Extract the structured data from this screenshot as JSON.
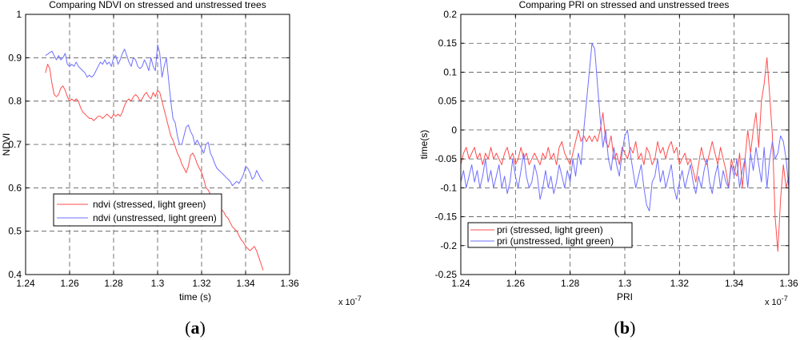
{
  "chart_data": [
    {
      "type": "line",
      "title": "Comparing NDVI on stressed and unstressed trees",
      "xlabel": "time (s)",
      "ylabel": "NDVI",
      "x_multiplier": "x 10",
      "x_multiplier_exp": "-7",
      "xlim": [
        1.24,
        1.36
      ],
      "ylim": [
        0.4,
        1.0
      ],
      "xticks": [
        1.24,
        1.26,
        1.28,
        1.3,
        1.32,
        1.34,
        1.36
      ],
      "xtick_labels": [
        "1.24",
        "1.26",
        "1.28",
        "1.3",
        "1.32",
        "1.34",
        "1.36"
      ],
      "yticks": [
        0.4,
        0.5,
        0.6,
        0.7,
        0.8,
        0.9,
        1.0
      ],
      "ytick_labels": [
        "0.4",
        "0.5",
        "0.6",
        "0.7",
        "0.8",
        "0.9",
        "1"
      ],
      "grid": true,
      "legend_position": "lower-left",
      "caption": "a",
      "series": [
        {
          "name": "ndvi (stressed, light green)",
          "color": "#ff4d4d",
          "x": [
            1.249,
            1.25,
            1.251,
            1.252,
            1.253,
            1.254,
            1.255,
            1.256,
            1.257,
            1.258,
            1.259,
            1.26,
            1.261,
            1.262,
            1.263,
            1.264,
            1.265,
            1.266,
            1.267,
            1.268,
            1.269,
            1.27,
            1.271,
            1.272,
            1.273,
            1.274,
            1.275,
            1.276,
            1.277,
            1.278,
            1.279,
            1.28,
            1.281,
            1.282,
            1.283,
            1.284,
            1.285,
            1.286,
            1.287,
            1.288,
            1.289,
            1.29,
            1.291,
            1.292,
            1.293,
            1.294,
            1.295,
            1.296,
            1.297,
            1.298,
            1.299,
            1.3,
            1.301,
            1.302,
            1.303,
            1.304,
            1.305,
            1.306,
            1.307,
            1.308,
            1.309,
            1.31,
            1.311,
            1.312,
            1.313,
            1.314,
            1.315,
            1.316,
            1.317,
            1.318,
            1.319,
            1.32,
            1.321,
            1.322,
            1.323,
            1.324,
            1.325,
            1.326,
            1.327,
            1.328,
            1.329,
            1.33,
            1.331,
            1.332,
            1.333,
            1.334,
            1.335,
            1.336,
            1.337,
            1.338,
            1.339,
            1.34,
            1.341,
            1.342,
            1.343,
            1.344,
            1.345,
            1.346,
            1.347,
            1.348
          ],
          "y": [
            0.865,
            0.885,
            0.875,
            0.84,
            0.815,
            0.81,
            0.815,
            0.83,
            0.835,
            0.825,
            0.81,
            0.8,
            0.805,
            0.8,
            0.805,
            0.8,
            0.785,
            0.775,
            0.77,
            0.765,
            0.76,
            0.76,
            0.755,
            0.76,
            0.765,
            0.765,
            0.76,
            0.765,
            0.77,
            0.765,
            0.76,
            0.77,
            0.765,
            0.77,
            0.765,
            0.775,
            0.79,
            0.8,
            0.805,
            0.8,
            0.81,
            0.815,
            0.81,
            0.8,
            0.805,
            0.815,
            0.82,
            0.81,
            0.805,
            0.82,
            0.81,
            0.825,
            0.82,
            0.8,
            0.78,
            0.76,
            0.74,
            0.72,
            0.71,
            0.695,
            0.68,
            0.67,
            0.655,
            0.645,
            0.635,
            0.65,
            0.675,
            0.68,
            0.67,
            0.655,
            0.645,
            0.635,
            0.62,
            0.6,
            0.595,
            0.585,
            0.58,
            0.57,
            0.56,
            0.555,
            0.55,
            0.545,
            0.535,
            0.53,
            0.52,
            0.51,
            0.505,
            0.5,
            0.49,
            0.48,
            0.475,
            0.465,
            0.46,
            0.455,
            0.46,
            0.465,
            0.455,
            0.44,
            0.425,
            0.41
          ]
        },
        {
          "name": "ndvi (unstressed, light green)",
          "color": "#6f6fff",
          "x": [
            1.249,
            1.25,
            1.251,
            1.252,
            1.253,
            1.254,
            1.255,
            1.256,
            1.257,
            1.258,
            1.259,
            1.26,
            1.261,
            1.262,
            1.263,
            1.264,
            1.265,
            1.266,
            1.267,
            1.268,
            1.269,
            1.27,
            1.271,
            1.272,
            1.273,
            1.274,
            1.275,
            1.276,
            1.277,
            1.278,
            1.279,
            1.28,
            1.281,
            1.282,
            1.283,
            1.284,
            1.285,
            1.286,
            1.287,
            1.288,
            1.289,
            1.29,
            1.291,
            1.292,
            1.293,
            1.294,
            1.295,
            1.296,
            1.297,
            1.298,
            1.299,
            1.3,
            1.301,
            1.302,
            1.303,
            1.304,
            1.305,
            1.306,
            1.307,
            1.308,
            1.309,
            1.31,
            1.311,
            1.312,
            1.313,
            1.314,
            1.315,
            1.316,
            1.317,
            1.318,
            1.319,
            1.32,
            1.321,
            1.322,
            1.323,
            1.324,
            1.325,
            1.326,
            1.327,
            1.328,
            1.329,
            1.33,
            1.331,
            1.332,
            1.333,
            1.334,
            1.335,
            1.336,
            1.337,
            1.338,
            1.339,
            1.34,
            1.341,
            1.342,
            1.343,
            1.344,
            1.345,
            1.346,
            1.347,
            1.348
          ],
          "y": [
            0.905,
            0.908,
            0.912,
            0.915,
            0.905,
            0.895,
            0.905,
            0.895,
            0.9,
            0.91,
            0.885,
            0.88,
            0.885,
            0.88,
            0.89,
            0.88,
            0.875,
            0.87,
            0.865,
            0.855,
            0.86,
            0.855,
            0.86,
            0.87,
            0.88,
            0.89,
            0.885,
            0.895,
            0.885,
            0.89,
            0.88,
            0.9,
            0.905,
            0.885,
            0.895,
            0.91,
            0.92,
            0.905,
            0.89,
            0.88,
            0.9,
            0.895,
            0.88,
            0.875,
            0.88,
            0.895,
            0.885,
            0.87,
            0.9,
            0.88,
            0.87,
            0.93,
            0.91,
            0.855,
            0.88,
            0.9,
            0.85,
            0.8,
            0.76,
            0.75,
            0.72,
            0.7,
            0.7,
            0.72,
            0.74,
            0.745,
            0.73,
            0.72,
            0.7,
            0.71,
            0.7,
            0.69,
            0.68,
            0.7,
            0.705,
            0.68,
            0.67,
            0.655,
            0.645,
            0.64,
            0.635,
            0.63,
            0.625,
            0.62,
            0.615,
            0.605,
            0.61,
            0.615,
            0.61,
            0.62,
            0.63,
            0.65,
            0.645,
            0.635,
            0.62,
            0.625,
            0.64,
            0.63,
            0.62,
            0.615
          ]
        }
      ]
    },
    {
      "type": "line",
      "title": "Comparing PRI on stressed and unstressed trees",
      "xlabel": "PRI",
      "ylabel": "time(s)",
      "x_multiplier": "x 10",
      "x_multiplier_exp": "-7",
      "xlim": [
        1.24,
        1.36
      ],
      "ylim": [
        -0.25,
        0.2
      ],
      "xticks": [
        1.24,
        1.26,
        1.28,
        1.3,
        1.32,
        1.34,
        1.36
      ],
      "xtick_labels": [
        "1.24",
        "1.26",
        "1.28",
        "1.3",
        "1.32",
        "1.34",
        "1.36"
      ],
      "yticks": [
        -0.25,
        -0.2,
        -0.15,
        -0.1,
        -0.05,
        0,
        0.05,
        0.1,
        0.15,
        0.2
      ],
      "ytick_labels": [
        "-0.25",
        "-0.2",
        "-0.15",
        "-0.1",
        "-0.05",
        "0",
        "0.05",
        "0.1",
        "0.15",
        "0.2"
      ],
      "grid": true,
      "legend_position": "lower-left",
      "caption": "b",
      "series": [
        {
          "name": "pri (stressed, light green)",
          "color": "#ff4d4d",
          "x": [
            1.24,
            1.241,
            1.242,
            1.243,
            1.244,
            1.245,
            1.246,
            1.247,
            1.248,
            1.249,
            1.25,
            1.251,
            1.252,
            1.253,
            1.254,
            1.255,
            1.256,
            1.257,
            1.258,
            1.259,
            1.26,
            1.261,
            1.262,
            1.263,
            1.264,
            1.265,
            1.266,
            1.267,
            1.268,
            1.269,
            1.27,
            1.271,
            1.272,
            1.273,
            1.274,
            1.275,
            1.276,
            1.277,
            1.278,
            1.279,
            1.28,
            1.281,
            1.282,
            1.283,
            1.284,
            1.285,
            1.286,
            1.287,
            1.288,
            1.289,
            1.29,
            1.291,
            1.292,
            1.293,
            1.294,
            1.295,
            1.296,
            1.297,
            1.298,
            1.299,
            1.3,
            1.301,
            1.302,
            1.303,
            1.304,
            1.305,
            1.306,
            1.307,
            1.308,
            1.309,
            1.31,
            1.311,
            1.312,
            1.313,
            1.314,
            1.315,
            1.316,
            1.317,
            1.318,
            1.319,
            1.32,
            1.321,
            1.322,
            1.323,
            1.324,
            1.325,
            1.326,
            1.327,
            1.328,
            1.329,
            1.33,
            1.331,
            1.332,
            1.333,
            1.334,
            1.335,
            1.336,
            1.337,
            1.338,
            1.339,
            1.34,
            1.341,
            1.342,
            1.343,
            1.344,
            1.345,
            1.346,
            1.347,
            1.348,
            1.349,
            1.35,
            1.351,
            1.352,
            1.353,
            1.354,
            1.355,
            1.356,
            1.357,
            1.358,
            1.359,
            1.36
          ],
          "y": [
            -0.06,
            -0.04,
            -0.03,
            -0.05,
            -0.04,
            -0.03,
            -0.05,
            -0.04,
            -0.06,
            -0.04,
            -0.05,
            -0.03,
            -0.05,
            -0.04,
            -0.05,
            -0.06,
            -0.04,
            -0.03,
            -0.05,
            -0.04,
            -0.06,
            -0.05,
            -0.03,
            -0.05,
            -0.04,
            -0.06,
            -0.05,
            -0.04,
            -0.05,
            -0.06,
            -0.04,
            -0.05,
            -0.03,
            -0.05,
            -0.04,
            -0.06,
            -0.03,
            -0.02,
            -0.04,
            -0.05,
            -0.06,
            -0.04,
            -0.02,
            0.0,
            -0.02,
            -0.01,
            -0.02,
            -0.01,
            -0.02,
            -0.01,
            -0.02,
            0.0,
            0.03,
            -0.02,
            -0.03,
            -0.01,
            -0.05,
            -0.04,
            -0.06,
            -0.03,
            -0.04,
            -0.05,
            -0.03,
            -0.04,
            -0.02,
            -0.05,
            -0.04,
            -0.06,
            -0.03,
            -0.04,
            -0.06,
            -0.05,
            -0.02,
            -0.04,
            -0.03,
            -0.05,
            -0.03,
            -0.02,
            -0.04,
            -0.03,
            -0.06,
            -0.05,
            -0.04,
            -0.06,
            -0.05,
            -0.07,
            -0.09,
            -0.06,
            -0.03,
            -0.05,
            -0.06,
            -0.04,
            -0.02,
            -0.04,
            -0.06,
            -0.03,
            -0.05,
            -0.07,
            -0.1,
            -0.05,
            -0.07,
            -0.08,
            -0.04,
            -0.1,
            -0.05,
            0.0,
            -0.04,
            0.0,
            0.03,
            -0.03,
            0.05,
            0.08,
            0.125,
            0.06,
            -0.01,
            -0.15,
            -0.21,
            -0.12,
            -0.06,
            -0.1,
            -0.08
          ]
        },
        {
          "name": "pri (unstressed, light green)",
          "color": "#6f6fff",
          "x": [
            1.24,
            1.241,
            1.242,
            1.243,
            1.244,
            1.245,
            1.246,
            1.247,
            1.248,
            1.249,
            1.25,
            1.251,
            1.252,
            1.253,
            1.254,
            1.255,
            1.256,
            1.257,
            1.258,
            1.259,
            1.26,
            1.261,
            1.262,
            1.263,
            1.264,
            1.265,
            1.266,
            1.267,
            1.268,
            1.269,
            1.27,
            1.271,
            1.272,
            1.273,
            1.274,
            1.275,
            1.276,
            1.277,
            1.278,
            1.279,
            1.28,
            1.281,
            1.282,
            1.283,
            1.284,
            1.285,
            1.286,
            1.287,
            1.288,
            1.289,
            1.29,
            1.291,
            1.292,
            1.293,
            1.294,
            1.295,
            1.296,
            1.297,
            1.298,
            1.299,
            1.3,
            1.301,
            1.302,
            1.303,
            1.304,
            1.305,
            1.306,
            1.307,
            1.308,
            1.309,
            1.31,
            1.311,
            1.312,
            1.313,
            1.314,
            1.315,
            1.316,
            1.317,
            1.318,
            1.319,
            1.32,
            1.321,
            1.322,
            1.323,
            1.324,
            1.325,
            1.326,
            1.327,
            1.328,
            1.329,
            1.33,
            1.331,
            1.332,
            1.333,
            1.334,
            1.335,
            1.336,
            1.337,
            1.338,
            1.339,
            1.34,
            1.341,
            1.342,
            1.343,
            1.344,
            1.345,
            1.346,
            1.347,
            1.348,
            1.349,
            1.35,
            1.351,
            1.352,
            1.353,
            1.354,
            1.355,
            1.356,
            1.357,
            1.358,
            1.359,
            1.36
          ],
          "y": [
            -0.09,
            -0.07,
            -0.1,
            -0.08,
            -0.06,
            -0.09,
            -0.07,
            -0.1,
            -0.08,
            -0.05,
            -0.09,
            -0.07,
            -0.1,
            -0.08,
            -0.06,
            -0.1,
            -0.08,
            -0.11,
            -0.09,
            -0.05,
            -0.08,
            -0.1,
            -0.07,
            -0.04,
            -0.08,
            -0.1,
            -0.09,
            -0.06,
            -0.08,
            -0.12,
            -0.1,
            -0.07,
            -0.1,
            -0.08,
            -0.11,
            -0.09,
            -0.06,
            -0.08,
            -0.1,
            -0.07,
            -0.09,
            -0.05,
            -0.08,
            -0.04,
            -0.06,
            0.0,
            0.05,
            0.1,
            0.15,
            0.14,
            0.08,
            0.02,
            -0.03,
            0.0,
            -0.05,
            -0.07,
            -0.03,
            -0.06,
            -0.08,
            -0.04,
            -0.01,
            0.0,
            -0.04,
            -0.07,
            -0.1,
            -0.08,
            -0.06,
            -0.1,
            -0.13,
            -0.14,
            -0.09,
            -0.08,
            -0.05,
            -0.09,
            -0.07,
            -0.1,
            -0.08,
            -0.06,
            -0.1,
            -0.12,
            -0.09,
            -0.07,
            -0.1,
            -0.08,
            -0.06,
            -0.09,
            -0.11,
            -0.08,
            -0.1,
            -0.07,
            -0.05,
            -0.09,
            -0.11,
            -0.08,
            -0.06,
            -0.1,
            -0.07,
            -0.09,
            -0.1,
            -0.06,
            -0.08,
            -0.05,
            -0.1,
            -0.07,
            -0.05,
            -0.1,
            -0.04,
            -0.07,
            -0.03,
            -0.06,
            -0.09,
            -0.03,
            -0.1,
            -0.05,
            -0.02,
            -0.05,
            -0.04,
            -0.01,
            -0.02,
            -0.05,
            -0.1
          ]
        }
      ]
    }
  ]
}
